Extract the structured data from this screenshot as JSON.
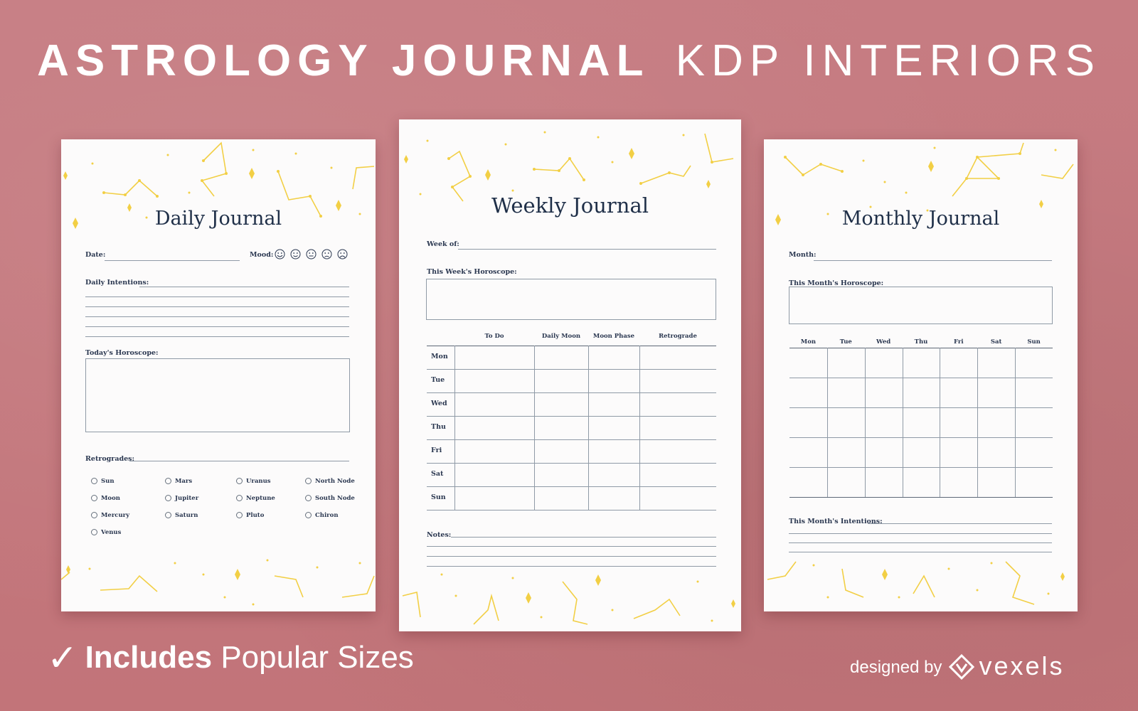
{
  "headline": {
    "bold": "ASTROLOGY JOURNAL",
    "light": "KDP INTERIORS"
  },
  "daily": {
    "title": "Daily Journal",
    "date_label": "Date:",
    "mood_label": "Mood:",
    "moods": [
      "very-happy-face-icon",
      "happy-face-icon",
      "neutral-face-icon",
      "sad-face-icon",
      "very-sad-face-icon"
    ],
    "intentions_label": "Daily Intentions:",
    "horoscope_label": "Today's Horoscope:",
    "retrogrades_label": "Retrogrades:",
    "retrogrades": [
      [
        "Sun",
        "Moon",
        "Mercury",
        "Venus"
      ],
      [
        "Mars",
        "Jupiter",
        "Saturn"
      ],
      [
        "Uranus",
        "Neptune",
        "Pluto"
      ],
      [
        "North Node",
        "South Node",
        "Chiron"
      ]
    ]
  },
  "weekly": {
    "title": "Weekly Journal",
    "week_label": "Week of:",
    "horoscope_label": "This Week's Horoscope:",
    "columns": [
      "To Do",
      "Daily Moon",
      "Moon Phase",
      "Retrograde"
    ],
    "days": [
      "Mon",
      "Tue",
      "Wed",
      "Thu",
      "Fri",
      "Sat",
      "Sun"
    ],
    "notes_label": "Notes:"
  },
  "monthly": {
    "title": "Monthly Journal",
    "month_label": "Month:",
    "horoscope_label": "This Month's Horoscope:",
    "days": [
      "Mon",
      "Tue",
      "Wed",
      "Thu",
      "Fri",
      "Sat",
      "Sun"
    ],
    "intentions_label": "This Month's Intentions:"
  },
  "footer": {
    "check_icon": "checkmark-icon",
    "includes": "Includes",
    "sizes": "Popular Sizes",
    "designed_by": "designed by",
    "brand": "vexels",
    "logo_icon": "vexels-logo-icon"
  },
  "colors": {
    "background": "#c4797f",
    "page": "#fcfbfb",
    "stars": "#f2cf45",
    "ink": "#1f2f48"
  }
}
